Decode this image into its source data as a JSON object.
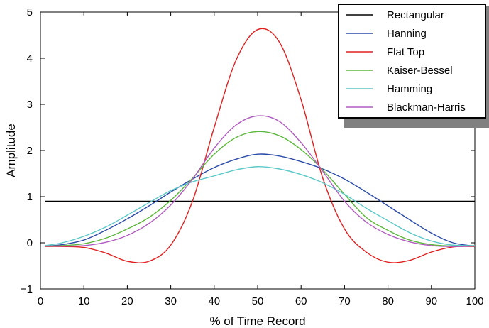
{
  "chart_data": {
    "type": "line",
    "title": "",
    "xlabel": "% of Time Record",
    "ylabel": "Amplitude",
    "xlim": [
      0,
      100
    ],
    "ylim": [
      -1,
      5
    ],
    "xticks": [
      0,
      10,
      20,
      30,
      40,
      50,
      60,
      70,
      80,
      90,
      100
    ],
    "yticks": [
      -1,
      0,
      1,
      2,
      3,
      4,
      5
    ],
    "grid": false,
    "legend_position": "top-right",
    "x": [
      1,
      5,
      10,
      15,
      20,
      25,
      30,
      35,
      40,
      45,
      50,
      55,
      60,
      65,
      70,
      75,
      80,
      85,
      90,
      95,
      100
    ],
    "series": [
      {
        "name": "Rectangular",
        "color": "#000000",
        "values": [
          0.9,
          0.9,
          0.9,
          0.9,
          0.9,
          0.9,
          0.9,
          0.9,
          0.9,
          0.9,
          0.9,
          0.9,
          0.9,
          0.9,
          0.9,
          0.9,
          0.9,
          0.9,
          0.9,
          0.9,
          0.9
        ]
      },
      {
        "name": "Hanning",
        "color": "#2b4ba8",
        "values": [
          -0.07,
          -0.04,
          0.06,
          0.27,
          0.52,
          0.8,
          1.1,
          1.38,
          1.63,
          1.81,
          1.92,
          1.88,
          1.76,
          1.6,
          1.38,
          1.1,
          0.8,
          0.5,
          0.21,
          0.0,
          -0.07
        ]
      },
      {
        "name": "Flat Top",
        "color": "#e02020",
        "values": [
          -0.08,
          -0.08,
          -0.1,
          -0.22,
          -0.4,
          -0.4,
          -0.05,
          0.9,
          2.5,
          3.95,
          4.62,
          4.35,
          3.1,
          1.4,
          0.3,
          -0.2,
          -0.42,
          -0.38,
          -0.2,
          -0.09,
          -0.08
        ]
      },
      {
        "name": "Kaiser-Bessel",
        "color": "#5cb83c",
        "values": [
          -0.07,
          -0.06,
          -0.02,
          0.1,
          0.3,
          0.55,
          0.92,
          1.4,
          1.92,
          2.28,
          2.41,
          2.32,
          2.02,
          1.58,
          1.05,
          0.55,
          0.27,
          0.06,
          -0.04,
          -0.07,
          -0.07
        ]
      },
      {
        "name": "Hamming",
        "color": "#5cc8c8",
        "values": [
          -0.06,
          0.0,
          0.14,
          0.34,
          0.6,
          0.87,
          1.13,
          1.32,
          1.45,
          1.58,
          1.65,
          1.6,
          1.48,
          1.3,
          1.05,
          0.75,
          0.48,
          0.22,
          0.04,
          -0.05,
          -0.06
        ]
      },
      {
        "name": "Blackman-Harris",
        "color": "#b05cc0",
        "values": [
          -0.07,
          -0.07,
          -0.06,
          0.01,
          0.16,
          0.42,
          0.82,
          1.38,
          2.05,
          2.55,
          2.75,
          2.63,
          2.17,
          1.55,
          0.9,
          0.45,
          0.18,
          0.02,
          -0.06,
          -0.08,
          -0.07
        ]
      }
    ]
  }
}
